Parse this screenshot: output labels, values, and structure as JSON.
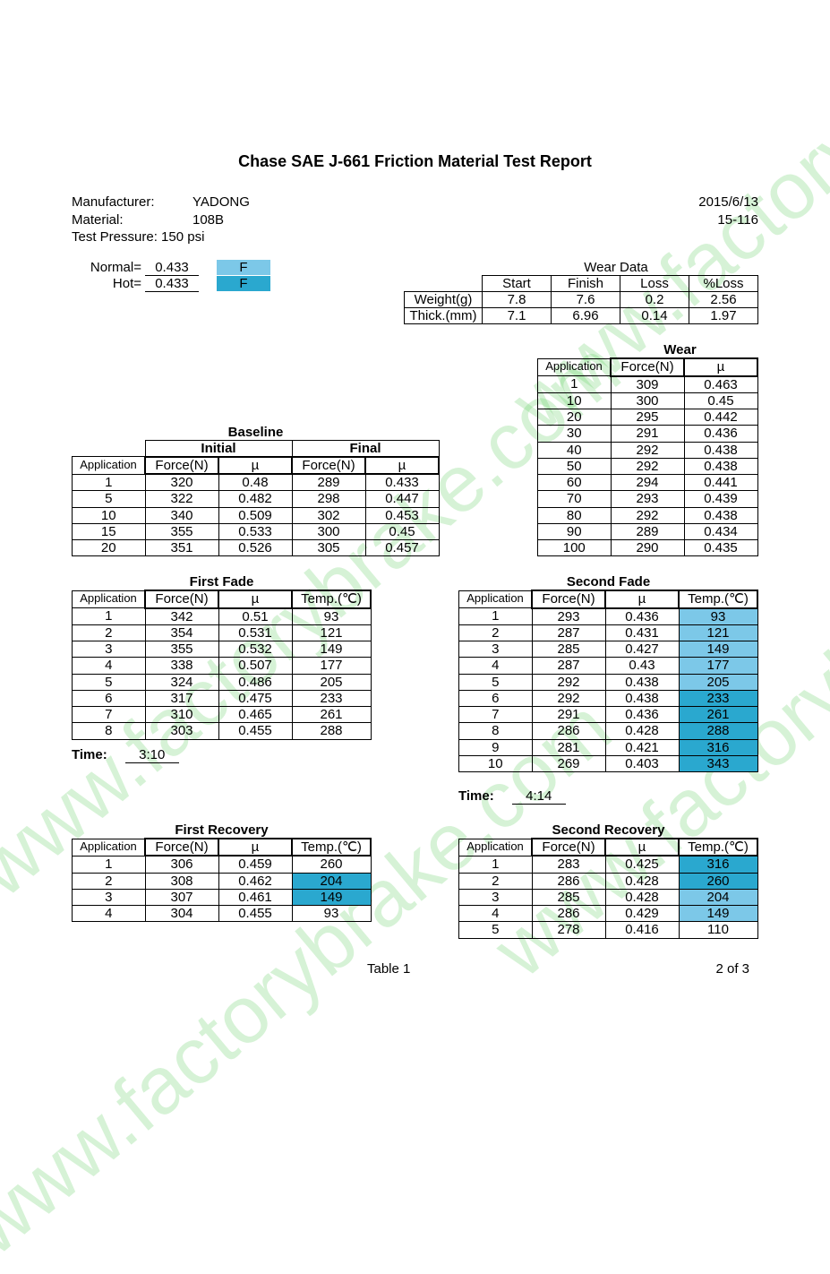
{
  "colors": {
    "watermark": "#5ecf5e",
    "hl_dark": "#2aa8cf",
    "hl_light": "#7cc8e8",
    "border": "#000000",
    "bg": "#ffffff"
  },
  "watermark_text": "www.factorybrake.com",
  "title": "Chase SAE J-661 Friction Material Test Report",
  "header": {
    "manufacturer_lbl": "Manufacturer:",
    "manufacturer": "YADONG",
    "material_lbl": "Material:",
    "material": "108B",
    "pressure_lbl": "Test Pressure: 150 psi",
    "date": "2015/6/13",
    "code": "15-116"
  },
  "normal_hot": {
    "normal_lbl": "Normal=",
    "normal_val": "0.433",
    "normal_code": "F",
    "hot_lbl": "Hot=",
    "hot_val": "0.433",
    "hot_code": "F"
  },
  "wear_data": {
    "title": "Wear Data",
    "cols": [
      "Start",
      "Finish",
      "Loss",
      "%Loss"
    ],
    "rows": [
      {
        "lbl": "Weight(g)",
        "vals": [
          "7.8",
          "7.6",
          "0.2",
          "2.56"
        ]
      },
      {
        "lbl": "Thick.(mm)",
        "vals": [
          "7.1",
          "6.96",
          "0.14",
          "1.97"
        ]
      }
    ]
  },
  "wear_table": {
    "title": "Wear",
    "cols": [
      "Application",
      "Force(N)",
      "µ"
    ],
    "rows": [
      [
        "1",
        "309",
        "0.463"
      ],
      [
        "10",
        "300",
        "0.45"
      ],
      [
        "20",
        "295",
        "0.442"
      ],
      [
        "30",
        "291",
        "0.436"
      ],
      [
        "40",
        "292",
        "0.438"
      ],
      [
        "50",
        "292",
        "0.438"
      ],
      [
        "60",
        "294",
        "0.441"
      ],
      [
        "70",
        "293",
        "0.439"
      ],
      [
        "80",
        "292",
        "0.438"
      ],
      [
        "90",
        "289",
        "0.434"
      ],
      [
        "100",
        "290",
        "0.435"
      ]
    ]
  },
  "baseline": {
    "title": "Baseline",
    "group_cols": [
      "Initial",
      "Final"
    ],
    "cols": [
      "Application",
      "Force(N)",
      "µ",
      "Force(N)",
      "µ"
    ],
    "rows": [
      [
        "1",
        "320",
        "0.48",
        "289",
        "0.433"
      ],
      [
        "5",
        "322",
        "0.482",
        "298",
        "0.447"
      ],
      [
        "10",
        "340",
        "0.509",
        "302",
        "0.453"
      ],
      [
        "15",
        "355",
        "0.533",
        "300",
        "0.45"
      ],
      [
        "20",
        "351",
        "0.526",
        "305",
        "0.457"
      ]
    ]
  },
  "first_fade": {
    "title": "First Fade",
    "cols": [
      "Application",
      "Force(N)",
      "µ",
      "Temp.(℃)"
    ],
    "rows": [
      [
        "1",
        "342",
        "0.51",
        "93"
      ],
      [
        "2",
        "354",
        "0.531",
        "121"
      ],
      [
        "3",
        "355",
        "0.532",
        "149"
      ],
      [
        "4",
        "338",
        "0.507",
        "177"
      ],
      [
        "5",
        "324",
        "0.486",
        "205"
      ],
      [
        "6",
        "317",
        "0.475",
        "233"
      ],
      [
        "7",
        "310",
        "0.465",
        "261"
      ],
      [
        "8",
        "303",
        "0.455",
        "288"
      ]
    ],
    "time_lbl": "Time:",
    "time": "3:10"
  },
  "second_fade": {
    "title": "Second Fade",
    "cols": [
      "Application",
      "Force(N)",
      "µ",
      "Temp.(℃)"
    ],
    "rows": [
      [
        "1",
        "293",
        "0.436",
        "93",
        "hl-light"
      ],
      [
        "2",
        "287",
        "0.431",
        "121",
        "hl-light"
      ],
      [
        "3",
        "285",
        "0.427",
        "149",
        "hl-light"
      ],
      [
        "4",
        "287",
        "0.43",
        "177",
        "hl-light"
      ],
      [
        "5",
        "292",
        "0.438",
        "205",
        "hl-light"
      ],
      [
        "6",
        "292",
        "0.438",
        "233",
        "hl-dark"
      ],
      [
        "7",
        "291",
        "0.436",
        "261",
        "hl-dark"
      ],
      [
        "8",
        "286",
        "0.428",
        "288",
        "hl-dark"
      ],
      [
        "9",
        "281",
        "0.421",
        "316",
        "hl-dark"
      ],
      [
        "10",
        "269",
        "0.403",
        "343",
        "hl-dark"
      ]
    ],
    "time_lbl": "Time:",
    "time": "4:14"
  },
  "first_recovery": {
    "title": "First Recovery",
    "cols": [
      "Application",
      "Force(N)",
      "µ",
      "Temp.(℃)"
    ],
    "rows": [
      [
        "1",
        "306",
        "0.459",
        "260",
        ""
      ],
      [
        "2",
        "308",
        "0.462",
        "204",
        "hl-dark"
      ],
      [
        "3",
        "307",
        "0.461",
        "149",
        "hl-dark"
      ],
      [
        "4",
        "304",
        "0.455",
        "93",
        ""
      ]
    ]
  },
  "second_recovery": {
    "title": "Second Recovery",
    "cols": [
      "Application",
      "Force(N)",
      "µ",
      "Temp.(℃)"
    ],
    "rows": [
      [
        "1",
        "283",
        "0.425",
        "316",
        "hl-dark"
      ],
      [
        "2",
        "286",
        "0.428",
        "260",
        "hl-dark"
      ],
      [
        "3",
        "285",
        "0.428",
        "204",
        "hl-light"
      ],
      [
        "4",
        "286",
        "0.429",
        "149",
        "hl-light"
      ],
      [
        "5",
        "278",
        "0.416",
        "110",
        ""
      ]
    ]
  },
  "footer": {
    "table_lbl": "Table 1",
    "page": "2 of 3"
  },
  "col_widths": {
    "app": 72,
    "force": 72,
    "mu": 72,
    "temp": 78,
    "wear_start": 64,
    "wear_cell": 68,
    "wear_lbl": 78
  }
}
